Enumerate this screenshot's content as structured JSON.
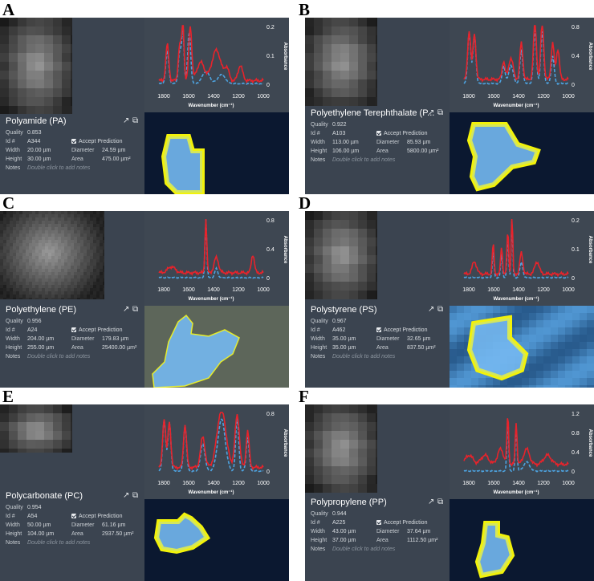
{
  "panels": [
    {
      "letter": "A",
      "name": "Polyamide (PA)",
      "quality": "0.853",
      "id": "A344",
      "accept": "Accept Prediction",
      "width": "20.00 µm",
      "diameter": "24.59 µm",
      "height": "30.00 µm",
      "area": "475.00 µm²",
      "notes": "Double click to add notes"
    },
    {
      "letter": "B",
      "name": "Polyethylene Terephthalate (P...",
      "quality": "0.922",
      "id": "A103",
      "accept": "Accept Prediction",
      "width": "113.00 µm",
      "diameter": "85.93 µm",
      "height": "106.00 µm",
      "area": "5800.00 µm²",
      "notes": "Double click to add notes"
    },
    {
      "letter": "C",
      "name": "Polyethylene (PE)",
      "quality": "0.956",
      "id": "A24",
      "accept": "Accept Prediction",
      "width": "204.00 µm",
      "diameter": "179.83 µm",
      "height": "255.00 µm",
      "area": "25400.00 µm²",
      "notes": "Double click to add notes"
    },
    {
      "letter": "D",
      "name": "Polystyrene (PS)",
      "quality": "0.967",
      "id": "A462",
      "accept": "Accept Prediction",
      "width": "35.00 µm",
      "diameter": "32.65 µm",
      "height": "35.00 µm",
      "area": "837.50 µm²",
      "notes": "Double click to add notes"
    },
    {
      "letter": "E",
      "name": "Polycarbonate (PC)",
      "quality": "0.954",
      "id": "A54",
      "accept": "Accept Prediction",
      "width": "50.00 µm",
      "diameter": "61.16 µm",
      "height": "104.00 µm",
      "area": "2937.50 µm²",
      "notes": "Double click to add notes"
    },
    {
      "letter": "F",
      "name": "Polypropylene (PP)",
      "quality": "0.944",
      "id": "A225",
      "accept": "Accept Prediction",
      "width": "43.00 µm",
      "diameter": "37.64 µm",
      "height": "37.00 µm",
      "area": "1112.50 µm²",
      "notes": "Double click to add notes"
    }
  ],
  "labels": {
    "quality": "Quality",
    "id": "Id #",
    "width": "Width",
    "height": "Height",
    "diameter": "Diameter",
    "area": "Area",
    "notes": "Notes"
  },
  "icons": {
    "open": "↗",
    "expand": "⧉"
  },
  "spectra": [
    {
      "yticks": [
        "0.2",
        "0.1",
        "0"
      ],
      "ylabel": "Absorbance",
      "xticks": [
        "1800",
        "1600",
        "1400",
        "1200",
        "1000"
      ],
      "xlabel": "Wavenumber (cm⁻¹)"
    },
    {
      "yticks": [
        "0.8",
        "0.4",
        "0"
      ],
      "ylabel": "Absorbance",
      "xticks": [
        "1800",
        "1600",
        "1400",
        "1200",
        "1000"
      ],
      "xlabel": "Wavenumber (cm⁻¹)"
    },
    {
      "yticks": [
        "0.8",
        "0.4",
        "0"
      ],
      "ylabel": "Absorbance",
      "xticks": [
        "1800",
        "1600",
        "1400",
        "1200",
        "1000"
      ],
      "xlabel": "Wavenumber (cm⁻¹)"
    },
    {
      "yticks": [
        "0.2",
        "0.1",
        "0"
      ],
      "ylabel": "Absorbance",
      "xticks": [
        "1800",
        "1600",
        "1400",
        "1200",
        "1000"
      ],
      "xlabel": "Wavenumber (cm⁻¹)"
    },
    {
      "yticks": [
        "0.8",
        "0"
      ],
      "ylabel": "Absorbance",
      "xticks": [
        "1800",
        "1600",
        "1400",
        "1200",
        "1000"
      ],
      "xlabel": "Wavenumber (cm⁻¹)"
    },
    {
      "yticks": [
        "1.2",
        "0.8",
        "0.4",
        "0"
      ],
      "ylabel": "Absorbance",
      "xticks": [
        "1800",
        "1600",
        "1400",
        "1200",
        "1000"
      ],
      "xlabel": "Wavenumber (cm⁻¹)"
    }
  ],
  "colors": {
    "measured": "#e8232b",
    "reference": "#4da3e0",
    "outline": "#f2f20a",
    "panel": "#3b4450"
  }
}
